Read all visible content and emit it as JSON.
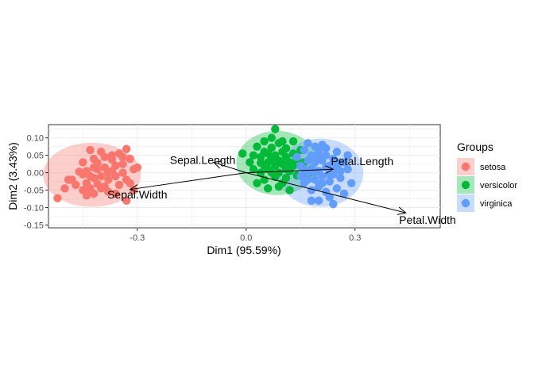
{
  "chart_data": {
    "type": "scatter",
    "xlabel": "Dim1 (95.59%)",
    "ylabel": "Dim2 (3.43%)",
    "xlim": [
      -0.545,
      0.535
    ],
    "ylim": [
      -0.158,
      0.138
    ],
    "x_ticks": [
      {
        "value": -0.3,
        "label": "-0.3"
      },
      {
        "value": 0.0,
        "label": "0.0"
      },
      {
        "value": 0.3,
        "label": "0.3"
      }
    ],
    "y_ticks": [
      {
        "value": 0.1,
        "label": "0.10"
      },
      {
        "value": 0.05,
        "label": "0.05"
      },
      {
        "value": 0.0,
        "label": "0.00"
      },
      {
        "value": -0.05,
        "label": "-0.05"
      },
      {
        "value": -0.1,
        "label": "-0.10"
      },
      {
        "value": -0.15,
        "label": "-0.15"
      }
    ],
    "grid": true,
    "legend": {
      "title": "Groups",
      "position": "right"
    },
    "series": [
      {
        "name": "setosa",
        "color": "#F8766D",
        "ellipse": {
          "cx": -0.425,
          "cy": -0.006,
          "rx": 0.135,
          "ry": 0.092
        },
        "points": [
          [
            -0.52,
            -0.073
          ],
          [
            -0.5,
            -0.045
          ],
          [
            -0.49,
            -0.02
          ],
          [
            -0.48,
            -0.02
          ],
          [
            -0.47,
            -0.035
          ],
          [
            -0.46,
            0.003
          ],
          [
            -0.45,
            -0.05
          ],
          [
            -0.45,
            -0.005
          ],
          [
            -0.44,
            0.005
          ],
          [
            -0.44,
            -0.03
          ],
          [
            -0.43,
            0.065
          ],
          [
            -0.43,
            -0.045
          ],
          [
            -0.42,
            0.015
          ],
          [
            -0.42,
            -0.06
          ],
          [
            -0.42,
            -0.015
          ],
          [
            -0.41,
            0.01
          ],
          [
            -0.41,
            -0.032
          ],
          [
            -0.4,
            0.06
          ],
          [
            -0.4,
            -0.01
          ],
          [
            -0.4,
            -0.045
          ],
          [
            -0.39,
            0.045
          ],
          [
            -0.39,
            0.015
          ],
          [
            -0.38,
            -0.02
          ],
          [
            -0.38,
            -0.055
          ],
          [
            -0.37,
            0.005
          ],
          [
            -0.37,
            0.038
          ],
          [
            -0.36,
            0.02
          ],
          [
            -0.36,
            -0.01
          ],
          [
            -0.35,
            0.055
          ],
          [
            -0.35,
            -0.035
          ],
          [
            -0.34,
            0.025
          ],
          [
            -0.34,
            0.0
          ],
          [
            -0.33,
            0.068
          ],
          [
            -0.33,
            -0.02
          ],
          [
            -0.33,
            -0.08
          ],
          [
            -0.32,
            0.04
          ],
          [
            -0.32,
            -0.03
          ],
          [
            -0.31,
            0.01
          ],
          [
            -0.31,
            -0.05
          ],
          [
            -0.3,
            0.015
          ],
          [
            -0.43,
            -0.01
          ],
          [
            -0.41,
            0.028
          ],
          [
            -0.39,
            -0.04
          ],
          [
            -0.37,
            0.05
          ],
          [
            -0.45,
            0.03
          ],
          [
            -0.36,
            -0.06
          ],
          [
            -0.44,
            -0.065
          ],
          [
            -0.38,
            0.0
          ],
          [
            -0.34,
            0.045
          ],
          [
            -0.42,
            0.04
          ]
        ]
      },
      {
        "name": "versicolor",
        "color": "#00BA38",
        "ellipse": {
          "cx": 0.085,
          "cy": 0.028,
          "rx": 0.112,
          "ry": 0.092
        },
        "points": [
          [
            -0.01,
            0.055
          ],
          [
            0.01,
            0.03
          ],
          [
            0.02,
            0.01
          ],
          [
            0.03,
            0.075
          ],
          [
            0.03,
            -0.03
          ],
          [
            0.04,
            0.045
          ],
          [
            0.04,
            0.0
          ],
          [
            0.05,
            0.09
          ],
          [
            0.05,
            0.02
          ],
          [
            0.05,
            -0.02
          ],
          [
            0.06,
            0.055
          ],
          [
            0.06,
            0.03
          ],
          [
            0.06,
            -0.045
          ],
          [
            0.07,
            0.072
          ],
          [
            0.07,
            0.0
          ],
          [
            0.07,
            0.04
          ],
          [
            0.08,
            0.125
          ],
          [
            0.08,
            0.05
          ],
          [
            0.08,
            0.02
          ],
          [
            0.08,
            -0.012
          ],
          [
            0.09,
            0.085
          ],
          [
            0.09,
            0.035
          ],
          [
            0.09,
            0.0
          ],
          [
            0.1,
            0.06
          ],
          [
            0.1,
            0.025
          ],
          [
            0.1,
            -0.03
          ],
          [
            0.11,
            0.045
          ],
          [
            0.11,
            0.01
          ],
          [
            0.11,
            0.07
          ],
          [
            0.12,
            0.03
          ],
          [
            0.12,
            -0.05
          ],
          [
            0.12,
            0.005
          ],
          [
            0.13,
            0.055
          ],
          [
            0.13,
            0.02
          ],
          [
            0.14,
            0.04
          ],
          [
            0.14,
            -0.008
          ],
          [
            0.15,
            0.02
          ],
          [
            0.15,
            0.065
          ],
          [
            0.06,
            0.01
          ],
          [
            0.04,
            0.028
          ],
          [
            0.09,
            -0.04
          ],
          [
            0.02,
            0.05
          ],
          [
            0.16,
            0.03
          ],
          [
            0.11,
            -0.015
          ],
          [
            0.07,
            0.1
          ],
          [
            0.13,
            0.09
          ],
          [
            0.1,
            0.09
          ],
          [
            0.05,
            0.06
          ],
          [
            0.17,
            -0.005
          ],
          [
            0.18,
            0.01
          ]
        ]
      },
      {
        "name": "virginica",
        "color": "#619CFF",
        "ellipse": {
          "cx": 0.205,
          "cy": 0.0,
          "rx": 0.118,
          "ry": 0.098
        },
        "points": [
          [
            0.14,
            0.045
          ],
          [
            0.15,
            0.02
          ],
          [
            0.15,
            -0.01
          ],
          [
            0.16,
            0.065
          ],
          [
            0.16,
            -0.03
          ],
          [
            0.17,
            0.085
          ],
          [
            0.17,
            0.035
          ],
          [
            0.17,
            0.0
          ],
          [
            0.18,
            0.05
          ],
          [
            0.18,
            -0.05
          ],
          [
            0.18,
            0.012
          ],
          [
            0.19,
            0.075
          ],
          [
            0.19,
            -0.02
          ],
          [
            0.19,
            0.03
          ],
          [
            0.2,
            0.06
          ],
          [
            0.2,
            0.005
          ],
          [
            0.2,
            -0.04
          ],
          [
            0.2,
            -0.08
          ],
          [
            0.21,
            0.035
          ],
          [
            0.21,
            -0.01
          ],
          [
            0.21,
            0.08
          ],
          [
            0.22,
            0.015
          ],
          [
            0.22,
            -0.055
          ],
          [
            0.22,
            0.05
          ],
          [
            0.23,
            -0.025
          ],
          [
            0.23,
            0.02
          ],
          [
            0.23,
            -0.07
          ],
          [
            0.24,
            0.04
          ],
          [
            0.24,
            -0.005
          ],
          [
            0.24,
            -0.09
          ],
          [
            0.25,
            0.015
          ],
          [
            0.25,
            -0.045
          ],
          [
            0.26,
            0.03
          ],
          [
            0.26,
            -0.015
          ],
          [
            0.27,
            -0.06
          ],
          [
            0.28,
            0.01
          ],
          [
            0.28,
            0.05
          ],
          [
            0.29,
            -0.03
          ],
          [
            0.16,
            0.01
          ],
          [
            0.19,
            0.0
          ],
          [
            0.21,
            -0.03
          ],
          [
            0.17,
            -0.02
          ],
          [
            0.22,
            0.07
          ],
          [
            0.25,
            0.06
          ],
          [
            0.26,
            0.005
          ],
          [
            0.18,
            -0.08
          ],
          [
            0.24,
            0.025
          ],
          [
            0.2,
            0.045
          ],
          [
            0.23,
            -0.005
          ],
          [
            0.27,
            0.03
          ]
        ]
      }
    ],
    "variables": [
      {
        "name": "Sepal.Length",
        "x": -0.09,
        "y": 0.03,
        "lx": -0.12,
        "ly": 0.037
      },
      {
        "name": "Sepal.Width",
        "x": -0.32,
        "y": -0.048,
        "lx": -0.3,
        "ly": -0.062
      },
      {
        "name": "Petal.Length",
        "x": 0.24,
        "y": 0.01,
        "lx": 0.32,
        "ly": 0.033
      },
      {
        "name": "Petal.Width",
        "x": 0.44,
        "y": -0.115,
        "lx": 0.5,
        "ly": -0.135
      }
    ]
  }
}
